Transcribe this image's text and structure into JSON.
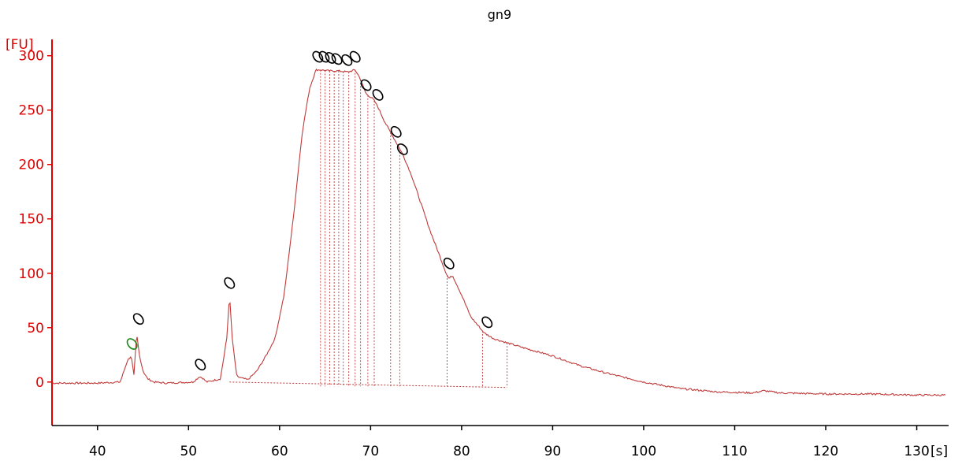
{
  "chart_data": {
    "type": "line",
    "title": "gn9",
    "ylabel": "[FU]",
    "xlabel": "[s]",
    "xlim": [
      35,
      133.5
    ],
    "ylim": [
      -40,
      315
    ],
    "xticks": [
      40,
      50,
      60,
      70,
      80,
      90,
      100,
      110,
      120,
      130
    ],
    "yticks": [
      0,
      50,
      100,
      150,
      200,
      250,
      300
    ],
    "colors": {
      "axis": "#e00000",
      "trace": "#c03a3a",
      "marker": "#000000",
      "marker_green": "#1a8a1a"
    },
    "series": [
      {
        "x": [
          35,
          40,
          42.5,
          43.3,
          43.7,
          44.0,
          44.3,
          44.6,
          45.0,
          45.5,
          46.2,
          47.5,
          50.5,
          51.2,
          51.5,
          52.0,
          53.5,
          54.2,
          54.5,
          54.8,
          55.3,
          56.5,
          57.5,
          58.5,
          59.5,
          60.5,
          61.5,
          62.5,
          63.3,
          64.0,
          64.5,
          65.5,
          66.5,
          67.5,
          68.3,
          68.8,
          69.5,
          70.3,
          70.8,
          71.5,
          72.5,
          73.5,
          74.5,
          75.5,
          76.5,
          77.5,
          78.3,
          78.6,
          79.0,
          80.0,
          81.0,
          82.5,
          83.5,
          85.0,
          87.0,
          90.0,
          93.0,
          96.0,
          100.0,
          104.0,
          108.0,
          112.0,
          113.2,
          115.0,
          120.0,
          125.0,
          130.0,
          133.0
        ],
        "y": [
          -1,
          -1,
          0,
          20,
          24,
          6,
          45,
          25,
          10,
          3,
          0,
          -1,
          0,
          5,
          4,
          0,
          3,
          40,
          80,
          40,
          5,
          2,
          10,
          24,
          40,
          80,
          150,
          230,
          270,
          287,
          287,
          286,
          286,
          285,
          287,
          280,
          265,
          260,
          253,
          240,
          225,
          210,
          190,
          165,
          140,
          118,
          100,
          95,
          98,
          80,
          60,
          45,
          40,
          36,
          31,
          24,
          15,
          8,
          0,
          -6,
          -9,
          -10,
          -8,
          -10,
          -11,
          -11,
          -12,
          -12
        ]
      }
    ],
    "peak_markers": [
      {
        "x": 43.8,
        "y": 35,
        "color": "green"
      },
      {
        "x": 44.5,
        "y": 58
      },
      {
        "x": 51.3,
        "y": 16
      },
      {
        "x": 54.5,
        "y": 91
      },
      {
        "x": 64.2,
        "y": 299
      },
      {
        "x": 64.9,
        "y": 299
      },
      {
        "x": 65.6,
        "y": 298
      },
      {
        "x": 66.3,
        "y": 297
      },
      {
        "x": 67.4,
        "y": 296
      },
      {
        "x": 68.3,
        "y": 299
      },
      {
        "x": 69.5,
        "y": 273
      },
      {
        "x": 70.8,
        "y": 264
      },
      {
        "x": 72.8,
        "y": 230
      },
      {
        "x": 73.5,
        "y": 214
      },
      {
        "x": 78.6,
        "y": 109
      },
      {
        "x": 82.8,
        "y": 55
      }
    ],
    "drop_lines": [
      64.5,
      65.0,
      65.5,
      66.0,
      66.5,
      67.0,
      67.6,
      68.3,
      68.9,
      69.7,
      70.4,
      72.2,
      73.2,
      78.4,
      82.3,
      85.0
    ],
    "baseline_segment": {
      "x": [
        54.5,
        85.0
      ],
      "y": [
        0,
        -5
      ]
    }
  }
}
